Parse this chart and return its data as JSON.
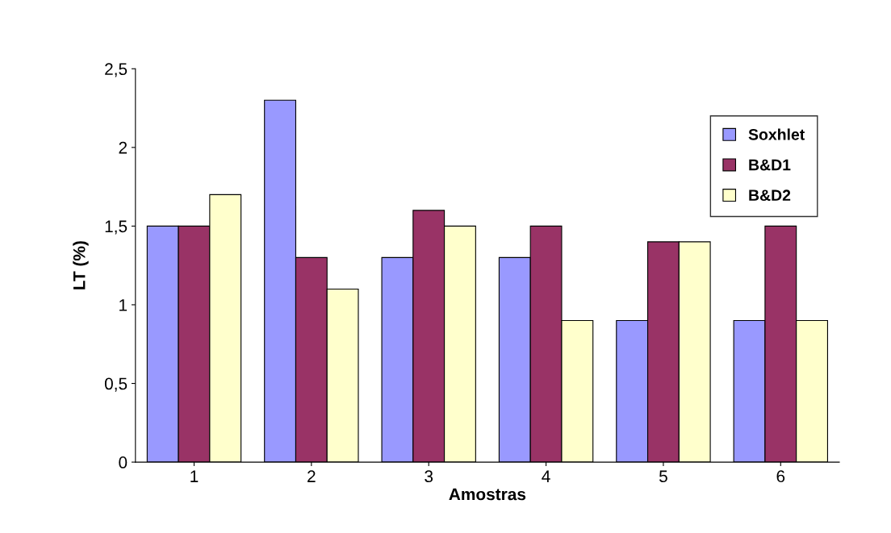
{
  "chart_data": {
    "type": "bar",
    "xlabel": "Amostras",
    "ylabel": "LT (%)",
    "categories": [
      "1",
      "2",
      "3",
      "4",
      "5",
      "6"
    ],
    "series": [
      {
        "name": "Soxhlet",
        "color": "#9999ff",
        "values": [
          1.5,
          2.3,
          1.3,
          1.3,
          0.9,
          0.9
        ]
      },
      {
        "name": "B&D1",
        "color": "#993366",
        "values": [
          1.5,
          1.3,
          1.6,
          1.5,
          1.4,
          1.5
        ]
      },
      {
        "name": "B&D2",
        "color": "#ffffcc",
        "values": [
          1.7,
          1.1,
          1.5,
          0.9,
          1.4,
          0.9
        ]
      }
    ],
    "ylim": [
      0,
      2.5
    ],
    "yticks": [
      0,
      {
        "value": 0.5,
        "label": "0,5"
      },
      1,
      {
        "value": 1.5,
        "label": "1,5"
      },
      2,
      {
        "value": 2.5,
        "label": "2,5"
      }
    ],
    "grid": false,
    "legend": "top right"
  }
}
